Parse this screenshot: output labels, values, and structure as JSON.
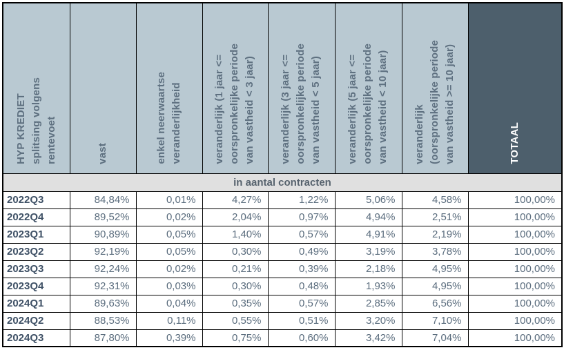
{
  "table": {
    "headers": [
      "HYP KREDIET\nsplitsing volgens\nrentevoet",
      "vast",
      "enkel neerwaartse\nveranderlijkheid",
      "veranderlijk (1 jaar <=\noorspronkelijke periode\nvan vastheid < 3 jaar)",
      "veranderlijk (3 jaar <=\noorspronkelijke periode\nvan vastheid < 5 jaar)",
      "veranderlijk (5 jaar <=\noorspronkelijke periode\nvan vastheid < 10 jaar)",
      "veranderlijk\n(oorspronkelijke periode\nvan vastheid >= 10 jaar)",
      "TOTAAL"
    ],
    "band_label": "in aantal contracten",
    "rows": [
      {
        "period": "2022Q3",
        "values": [
          "84,84%",
          "0,01%",
          "4,27%",
          "1,22%",
          "5,06%",
          "4,58%",
          "100,00%"
        ]
      },
      {
        "period": "2022Q4",
        "values": [
          "89,52%",
          "0,02%",
          "2,04%",
          "0,97%",
          "4,94%",
          "2,51%",
          "100,00%"
        ]
      },
      {
        "period": "2023Q1",
        "values": [
          "90,89%",
          "0,05%",
          "1,40%",
          "0,57%",
          "4,91%",
          "2,19%",
          "100,00%"
        ]
      },
      {
        "period": "2023Q2",
        "values": [
          "92,19%",
          "0,05%",
          "0,30%",
          "0,49%",
          "3,19%",
          "3,78%",
          "100,00%"
        ]
      },
      {
        "period": "2023Q3",
        "values": [
          "92,24%",
          "0,02%",
          "0,21%",
          "0,39%",
          "2,18%",
          "4,95%",
          "100,00%"
        ]
      },
      {
        "period": "2023Q4",
        "values": [
          "92,31%",
          "0,03%",
          "0,30%",
          "0,48%",
          "1,93%",
          "4,95%",
          "100,00%"
        ]
      },
      {
        "period": "2024Q1",
        "values": [
          "89,63%",
          "0,04%",
          "0,35%",
          "0,57%",
          "2,85%",
          "6,56%",
          "100,00%"
        ]
      },
      {
        "period": "2024Q2",
        "values": [
          "88,53%",
          "0,11%",
          "0,55%",
          "0,51%",
          "3,20%",
          "7,10%",
          "100,00%"
        ]
      },
      {
        "period": "2024Q3",
        "values": [
          "87,80%",
          "0,39%",
          "0,75%",
          "0,60%",
          "3,42%",
          "7,04%",
          "100,00%"
        ]
      }
    ],
    "colors": {
      "header_bg": "#b9c9d2",
      "totaal_bg": "#4d5f6c",
      "band_bg": "#e0e0e0",
      "header_text": "#5e7080",
      "row_label_text": "#3f5166",
      "value_text": "#5b6d7e",
      "border": "#000000"
    }
  },
  "chart_data": {
    "type": "table",
    "title": "HYP KREDIET splitsing volgens rentevoet",
    "unit": "in aantal contracten",
    "categories": [
      "2022Q3",
      "2022Q4",
      "2023Q1",
      "2023Q2",
      "2023Q3",
      "2023Q4",
      "2024Q1",
      "2024Q2",
      "2024Q3"
    ],
    "series": [
      {
        "name": "vast",
        "values": [
          84.84,
          89.52,
          90.89,
          92.19,
          92.24,
          92.31,
          89.63,
          88.53,
          87.8
        ]
      },
      {
        "name": "enkel neerwaartse veranderlijkheid",
        "values": [
          0.01,
          0.02,
          0.05,
          0.05,
          0.02,
          0.03,
          0.04,
          0.11,
          0.39
        ]
      },
      {
        "name": "veranderlijk (1 jaar <= oorspronkelijke periode van vastheid < 3 jaar)",
        "values": [
          4.27,
          2.04,
          1.4,
          0.3,
          0.21,
          0.3,
          0.35,
          0.55,
          0.75
        ]
      },
      {
        "name": "veranderlijk (3 jaar <= oorspronkelijke periode van vastheid < 5 jaar)",
        "values": [
          1.22,
          0.97,
          0.57,
          0.49,
          0.39,
          0.48,
          0.57,
          0.51,
          0.6
        ]
      },
      {
        "name": "veranderlijk (5 jaar <= oorspronkelijke periode van vastheid < 10 jaar)",
        "values": [
          5.06,
          4.94,
          4.91,
          3.19,
          2.18,
          1.93,
          2.85,
          3.2,
          3.42
        ]
      },
      {
        "name": "veranderlijk (oorspronkelijke periode van vastheid >= 10 jaar)",
        "values": [
          4.58,
          2.51,
          2.19,
          3.78,
          4.95,
          4.95,
          6.56,
          7.1,
          7.04
        ]
      },
      {
        "name": "TOTAAL",
        "values": [
          100.0,
          100.0,
          100.0,
          100.0,
          100.0,
          100.0,
          100.0,
          100.0,
          100.0
        ]
      }
    ],
    "value_format": "percent, comma decimal separator"
  }
}
